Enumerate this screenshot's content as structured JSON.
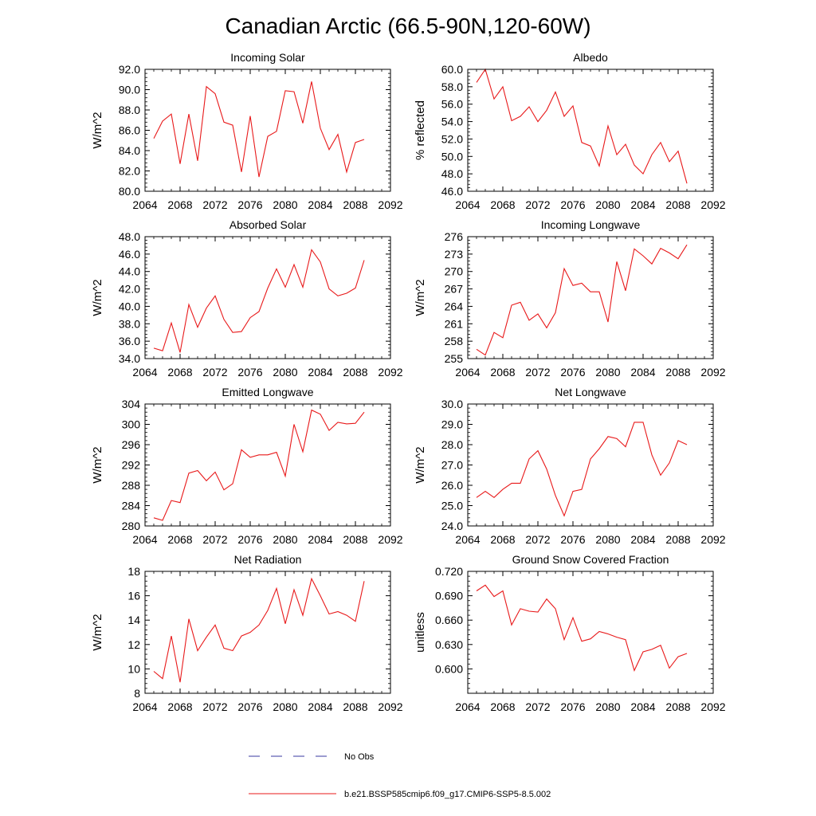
{
  "figure_title": "Canadian Arctic (66.5-90N,120-60W)",
  "legend": [
    {
      "label": "No Obs",
      "color": "#3a3aa0",
      "style": "dashed"
    },
    {
      "label": "b.e21.BSSP585cmip6.f09_g17.CMIP6-SSP5-8.5.002",
      "color": "#e8191a",
      "style": "solid"
    }
  ],
  "chart_data": [
    {
      "type": "line",
      "title": "Incoming Solar",
      "xlabel": "",
      "ylabel": "W/m^2",
      "xlim": [
        2064,
        2092
      ],
      "ylim": [
        80,
        92
      ],
      "xticks": [
        2064,
        2068,
        2072,
        2076,
        2080,
        2084,
        2088,
        2092
      ],
      "xtick_labels": [
        "2064",
        "2068",
        "2072",
        "2076",
        "2080",
        "2084",
        "2088",
        "2092"
      ],
      "yticks": [
        80,
        82,
        84,
        86,
        88,
        90,
        92
      ],
      "ytick_labels": [
        "80.0",
        "82.0",
        "84.0",
        "86.0",
        "88.0",
        "90.0",
        "92.0"
      ],
      "series": [
        {
          "color": "#e8191a",
          "x": [
            2065,
            2066,
            2067,
            2068,
            2069,
            2070,
            2071,
            2072,
            2073,
            2074,
            2075,
            2076,
            2077,
            2078,
            2079,
            2080,
            2081,
            2082,
            2083,
            2084,
            2085,
            2086,
            2087,
            2088,
            2089
          ],
          "values": [
            85.2,
            86.9,
            87.6,
            82.7,
            87.6,
            83.0,
            90.3,
            89.6,
            86.8,
            86.5,
            81.9,
            87.4,
            81.4,
            85.4,
            85.9,
            89.9,
            89.8,
            86.7,
            90.8,
            86.2,
            84.1,
            85.6,
            81.9,
            84.8,
            85.1
          ]
        }
      ]
    },
    {
      "type": "line",
      "title": "Albedo",
      "xlabel": "",
      "ylabel": "% reflected",
      "xlim": [
        2064,
        2092
      ],
      "ylim": [
        46,
        60
      ],
      "xticks": [
        2064,
        2068,
        2072,
        2076,
        2080,
        2084,
        2088,
        2092
      ],
      "xtick_labels": [
        "2064",
        "2068",
        "2072",
        "2076",
        "2080",
        "2084",
        "2088",
        "2092"
      ],
      "yticks": [
        46,
        48,
        50,
        52,
        54,
        56,
        58,
        60
      ],
      "ytick_labels": [
        "46.0",
        "48.0",
        "50.0",
        "52.0",
        "54.0",
        "56.0",
        "58.0",
        "60.0"
      ],
      "series": [
        {
          "color": "#e8191a",
          "x": [
            2065,
            2066,
            2067,
            2068,
            2069,
            2070,
            2071,
            2072,
            2073,
            2074,
            2075,
            2076,
            2077,
            2078,
            2079,
            2080,
            2081,
            2082,
            2083,
            2084,
            2085,
            2086,
            2087,
            2088,
            2089
          ],
          "values": [
            58.5,
            60.0,
            56.6,
            58.0,
            54.1,
            54.6,
            55.7,
            54.0,
            55.3,
            57.4,
            54.6,
            55.8,
            51.6,
            51.2,
            48.9,
            53.5,
            50.2,
            51.4,
            49.0,
            48.0,
            50.2,
            51.6,
            49.4,
            50.6,
            46.9
          ]
        }
      ]
    },
    {
      "type": "line",
      "title": "Absorbed Solar",
      "xlabel": "",
      "ylabel": "W/m^2",
      "xlim": [
        2064,
        2092
      ],
      "ylim": [
        34,
        48
      ],
      "xticks": [
        2064,
        2068,
        2072,
        2076,
        2080,
        2084,
        2088,
        2092
      ],
      "xtick_labels": [
        "2064",
        "2068",
        "2072",
        "2076",
        "2080",
        "2084",
        "2088",
        "2092"
      ],
      "yticks": [
        34,
        36,
        38,
        40,
        42,
        44,
        46,
        48
      ],
      "ytick_labels": [
        "34.0",
        "36.0",
        "38.0",
        "40.0",
        "42.0",
        "44.0",
        "46.0",
        "48.0"
      ],
      "series": [
        {
          "color": "#e8191a",
          "x": [
            2065,
            2066,
            2067,
            2068,
            2069,
            2070,
            2071,
            2072,
            2073,
            2074,
            2075,
            2076,
            2077,
            2078,
            2079,
            2080,
            2081,
            2082,
            2083,
            2084,
            2085,
            2086,
            2087,
            2088,
            2089
          ],
          "values": [
            35.2,
            34.9,
            38.1,
            34.7,
            40.2,
            37.6,
            39.8,
            41.2,
            38.5,
            37.0,
            37.1,
            38.7,
            39.4,
            42.1,
            44.3,
            42.2,
            44.8,
            42.2,
            46.5,
            45.1,
            42.0,
            41.2,
            41.5,
            42.1,
            45.3
          ]
        }
      ]
    },
    {
      "type": "line",
      "title": "Incoming Longwave",
      "xlabel": "",
      "ylabel": "W/m^2",
      "xlim": [
        2064,
        2092
      ],
      "ylim": [
        255,
        276
      ],
      "xticks": [
        2064,
        2068,
        2072,
        2076,
        2080,
        2084,
        2088,
        2092
      ],
      "xtick_labels": [
        "2064",
        "2068",
        "2072",
        "2076",
        "2080",
        "2084",
        "2088",
        "2092"
      ],
      "yticks": [
        255,
        258,
        261,
        264,
        267,
        270,
        273,
        276
      ],
      "ytick_labels": [
        "255",
        "258",
        "261",
        "264",
        "267",
        "270",
        "273",
        "276"
      ],
      "series": [
        {
          "color": "#e8191a",
          "x": [
            2065,
            2066,
            2067,
            2068,
            2069,
            2070,
            2071,
            2072,
            2073,
            2074,
            2075,
            2076,
            2077,
            2078,
            2079,
            2080,
            2081,
            2082,
            2083,
            2084,
            2085,
            2086,
            2087,
            2088,
            2089
          ],
          "values": [
            256.6,
            255.6,
            259.5,
            258.6,
            264.2,
            264.7,
            261.6,
            262.7,
            260.3,
            262.9,
            270.5,
            267.6,
            268.0,
            266.5,
            266.5,
            261.3,
            271.7,
            266.7,
            273.9,
            272.7,
            271.3,
            274.0,
            273.2,
            272.2,
            274.6
          ]
        }
      ]
    },
    {
      "type": "line",
      "title": "Emitted Longwave",
      "xlabel": "",
      "ylabel": "W/m^2",
      "xlim": [
        2064,
        2092
      ],
      "ylim": [
        280,
        304
      ],
      "xticks": [
        2064,
        2068,
        2072,
        2076,
        2080,
        2084,
        2088,
        2092
      ],
      "xtick_labels": [
        "2064",
        "2068",
        "2072",
        "2076",
        "2080",
        "2084",
        "2088",
        "2092"
      ],
      "yticks": [
        280,
        284,
        288,
        292,
        296,
        300,
        304
      ],
      "ytick_labels": [
        "280",
        "284",
        "288",
        "292",
        "296",
        "300",
        "304"
      ],
      "series": [
        {
          "color": "#e8191a",
          "x": [
            2065,
            2066,
            2067,
            2068,
            2069,
            2070,
            2071,
            2072,
            2073,
            2074,
            2075,
            2076,
            2077,
            2078,
            2079,
            2080,
            2081,
            2082,
            2083,
            2084,
            2085,
            2086,
            2087,
            2088,
            2089
          ],
          "values": [
            281.6,
            281.1,
            285.0,
            284.6,
            290.4,
            290.9,
            288.9,
            290.6,
            287.1,
            288.3,
            295.0,
            293.5,
            294.0,
            294.0,
            294.5,
            289.8,
            300.0,
            294.6,
            302.8,
            302.0,
            298.8,
            300.4,
            300.1,
            300.2,
            302.4
          ]
        }
      ]
    },
    {
      "type": "line",
      "title": "Net Longwave",
      "xlabel": "",
      "ylabel": "W/m^2",
      "xlim": [
        2064,
        2092
      ],
      "ylim": [
        24,
        30
      ],
      "xticks": [
        2064,
        2068,
        2072,
        2076,
        2080,
        2084,
        2088,
        2092
      ],
      "xtick_labels": [
        "2064",
        "2068",
        "2072",
        "2076",
        "2080",
        "2084",
        "2088",
        "2092"
      ],
      "yticks": [
        24,
        25,
        26,
        27,
        28,
        29,
        30
      ],
      "ytick_labels": [
        "24.0",
        "25.0",
        "26.0",
        "27.0",
        "28.0",
        "29.0",
        "30.0"
      ],
      "series": [
        {
          "color": "#e8191a",
          "x": [
            2065,
            2066,
            2067,
            2068,
            2069,
            2070,
            2071,
            2072,
            2073,
            2074,
            2075,
            2076,
            2077,
            2078,
            2079,
            2080,
            2081,
            2082,
            2083,
            2084,
            2085,
            2086,
            2087,
            2088,
            2089
          ],
          "values": [
            25.4,
            25.7,
            25.4,
            25.8,
            26.1,
            26.1,
            27.3,
            27.7,
            26.8,
            25.5,
            24.5,
            25.7,
            25.8,
            27.3,
            27.8,
            28.4,
            28.3,
            27.9,
            29.1,
            29.1,
            27.5,
            26.5,
            27.1,
            28.2,
            28.0
          ]
        }
      ]
    },
    {
      "type": "line",
      "title": "Net Radiation",
      "xlabel": "",
      "ylabel": "W/m^2",
      "xlim": [
        2064,
        2092
      ],
      "ylim": [
        8,
        18
      ],
      "xticks": [
        2064,
        2068,
        2072,
        2076,
        2080,
        2084,
        2088,
        2092
      ],
      "xtick_labels": [
        "2064",
        "2068",
        "2072",
        "2076",
        "2080",
        "2084",
        "2088",
        "2092"
      ],
      "yticks": [
        8,
        10,
        12,
        14,
        16,
        18
      ],
      "ytick_labels": [
        "8",
        "10",
        "12",
        "14",
        "16",
        "18"
      ],
      "series": [
        {
          "color": "#e8191a",
          "x": [
            2065,
            2066,
            2067,
            2068,
            2069,
            2070,
            2071,
            2072,
            2073,
            2074,
            2075,
            2076,
            2077,
            2078,
            2079,
            2080,
            2081,
            2082,
            2083,
            2084,
            2085,
            2086,
            2087,
            2088,
            2089
          ],
          "values": [
            9.8,
            9.2,
            12.7,
            8.9,
            14.1,
            11.5,
            12.6,
            13.6,
            11.7,
            11.5,
            12.7,
            13.0,
            13.6,
            14.8,
            16.6,
            13.7,
            16.5,
            14.4,
            17.4,
            16.0,
            14.5,
            14.7,
            14.4,
            13.9,
            17.2
          ]
        }
      ]
    },
    {
      "type": "line",
      "title": "Ground Snow Covered Fraction",
      "xlabel": "",
      "ylabel": "unitless",
      "xlim": [
        2064,
        2092
      ],
      "ylim": [
        0.57,
        0.72
      ],
      "xticks": [
        2064,
        2068,
        2072,
        2076,
        2080,
        2084,
        2088,
        2092
      ],
      "xtick_labels": [
        "2064",
        "2068",
        "2072",
        "2076",
        "2080",
        "2084",
        "2088",
        "2092"
      ],
      "yticks": [
        0.6,
        0.63,
        0.66,
        0.69,
        0.72
      ],
      "ytick_labels": [
        "0.600",
        "0.630",
        "0.660",
        "0.690",
        "0.720"
      ],
      "series": [
        {
          "color": "#e8191a",
          "x": [
            2065,
            2066,
            2067,
            2068,
            2069,
            2070,
            2071,
            2072,
            2073,
            2074,
            2075,
            2076,
            2077,
            2078,
            2079,
            2080,
            2081,
            2082,
            2083,
            2084,
            2085,
            2086,
            2087,
            2088,
            2089
          ],
          "values": [
            0.696,
            0.703,
            0.689,
            0.696,
            0.654,
            0.674,
            0.671,
            0.67,
            0.686,
            0.674,
            0.636,
            0.663,
            0.634,
            0.637,
            0.646,
            0.643,
            0.639,
            0.636,
            0.598,
            0.621,
            0.624,
            0.629,
            0.601,
            0.615,
            0.619
          ]
        }
      ]
    }
  ]
}
